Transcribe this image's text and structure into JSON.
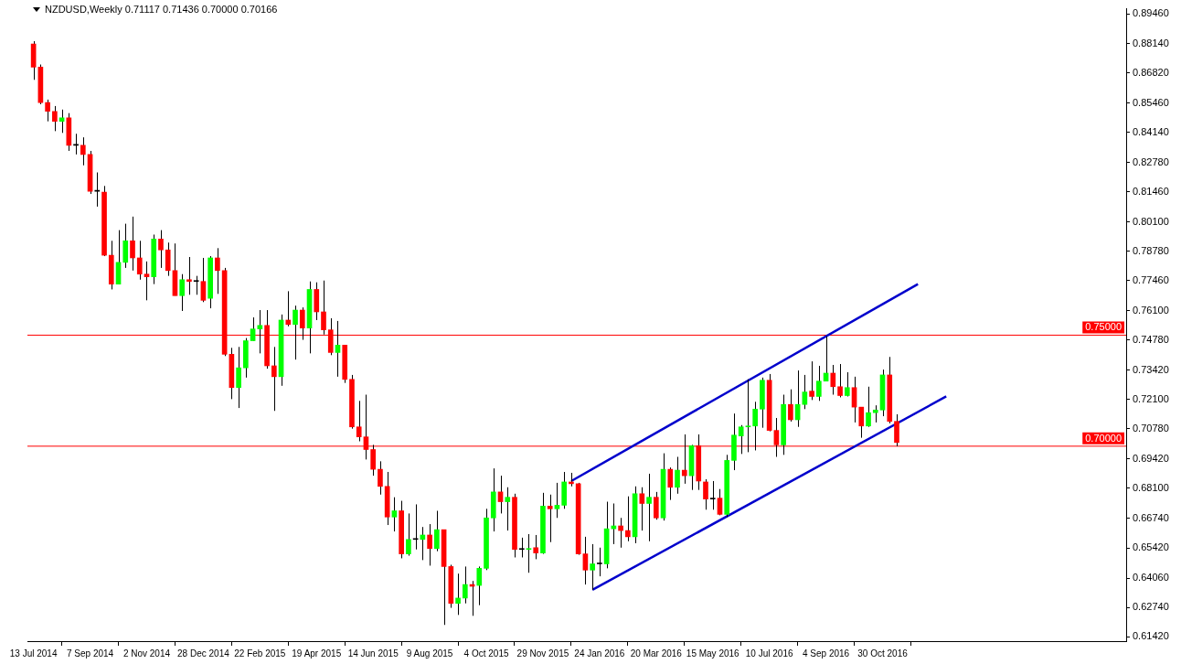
{
  "chart_data": {
    "type": "candlestick",
    "title": "NZDUSD,Weekly  0.71117 0.71436 0.70000 0.70166",
    "x": [
      "2014-07-13",
      "2014-07-20",
      "2014-07-27",
      "2014-08-03",
      "2014-08-10",
      "2014-08-17",
      "2014-08-24",
      "2014-08-31",
      "2014-09-07",
      "2014-09-14",
      "2014-09-21",
      "2014-09-28",
      "2014-10-05",
      "2014-10-12",
      "2014-10-19",
      "2014-10-26",
      "2014-11-02",
      "2014-11-09",
      "2014-11-16",
      "2014-11-23",
      "2014-11-30",
      "2014-12-07",
      "2014-12-14",
      "2014-12-21",
      "2014-12-28",
      "2015-01-04",
      "2015-01-11",
      "2015-01-18",
      "2015-01-25",
      "2015-02-01",
      "2015-02-08",
      "2015-02-15",
      "2015-02-22",
      "2015-03-01",
      "2015-03-08",
      "2015-03-15",
      "2015-03-22",
      "2015-03-29",
      "2015-04-05",
      "2015-04-12",
      "2015-04-19",
      "2015-04-26",
      "2015-05-03",
      "2015-05-10",
      "2015-05-17",
      "2015-05-24",
      "2015-05-31",
      "2015-06-07",
      "2015-06-14",
      "2015-06-21",
      "2015-06-28",
      "2015-07-05",
      "2015-07-12",
      "2015-07-19",
      "2015-07-26",
      "2015-08-02",
      "2015-08-09",
      "2015-08-16",
      "2015-08-23",
      "2015-08-30",
      "2015-09-06",
      "2015-09-13",
      "2015-09-20",
      "2015-09-27",
      "2015-10-04",
      "2015-10-11",
      "2015-10-18",
      "2015-10-25",
      "2015-11-01",
      "2015-11-08",
      "2015-11-15",
      "2015-11-22",
      "2015-11-29",
      "2015-12-06",
      "2015-12-13",
      "2015-12-20",
      "2015-12-27",
      "2016-01-03",
      "2016-01-10",
      "2016-01-17",
      "2016-01-24",
      "2016-01-31",
      "2016-02-07",
      "2016-02-14",
      "2016-02-21",
      "2016-02-28",
      "2016-03-06",
      "2016-03-13",
      "2016-03-20",
      "2016-03-27",
      "2016-04-03",
      "2016-04-10",
      "2016-04-17",
      "2016-04-24",
      "2016-05-01",
      "2016-05-08",
      "2016-05-15",
      "2016-05-22",
      "2016-05-29",
      "2016-06-05",
      "2016-06-12",
      "2016-06-19",
      "2016-06-26",
      "2016-07-03",
      "2016-07-10",
      "2016-07-17",
      "2016-07-24",
      "2016-07-31",
      "2016-08-07",
      "2016-08-14",
      "2016-08-21",
      "2016-08-28",
      "2016-09-04",
      "2016-09-11",
      "2016-09-18",
      "2016-09-25",
      "2016-10-02",
      "2016-10-09",
      "2016-10-16",
      "2016-10-23",
      "2016-10-30",
      "2016-11-06",
      "2016-11-13"
    ],
    "ohlc": [
      [
        0.8812,
        0.8824,
        0.865,
        0.8707
      ],
      [
        0.8707,
        0.8719,
        0.854,
        0.8548
      ],
      [
        0.8548,
        0.8561,
        0.8463,
        0.8508
      ],
      [
        0.8508,
        0.8532,
        0.8419,
        0.8463
      ],
      [
        0.8463,
        0.8516,
        0.8411,
        0.8479
      ],
      [
        0.8479,
        0.85,
        0.833,
        0.8355
      ],
      [
        0.8355,
        0.8407,
        0.8314,
        0.8355
      ],
      [
        0.8355,
        0.8391,
        0.8265,
        0.8314
      ],
      [
        0.8314,
        0.833,
        0.8136,
        0.8148
      ],
      [
        0.8148,
        0.8233,
        0.8079,
        0.8148
      ],
      [
        0.8144,
        0.8172,
        0.7856,
        0.786
      ],
      [
        0.786,
        0.7925,
        0.7706,
        0.773
      ],
      [
        0.773,
        0.7973,
        0.773,
        0.7828
      ],
      [
        0.7828,
        0.8002,
        0.7803,
        0.7925
      ],
      [
        0.7925,
        0.8034,
        0.7791,
        0.7848
      ],
      [
        0.7848,
        0.7925,
        0.775,
        0.7775
      ],
      [
        0.7775,
        0.7832,
        0.7657,
        0.7763
      ],
      [
        0.7763,
        0.7953,
        0.773,
        0.7933
      ],
      [
        0.7933,
        0.7973,
        0.7803,
        0.7884
      ],
      [
        0.7884,
        0.7917,
        0.7767,
        0.7791
      ],
      [
        0.7791,
        0.7913,
        0.7678,
        0.7678
      ],
      [
        0.7678,
        0.7775,
        0.7609,
        0.775
      ],
      [
        0.775,
        0.7852,
        0.7682,
        0.7742
      ],
      [
        0.7742,
        0.7767,
        0.7682,
        0.7742
      ],
      [
        0.7742,
        0.7848,
        0.7649,
        0.7657
      ],
      [
        0.7666,
        0.7856,
        0.7621,
        0.7848
      ],
      [
        0.7848,
        0.7892,
        0.7686,
        0.7791
      ],
      [
        0.7791,
        0.7803,
        0.7406,
        0.7414
      ],
      [
        0.7414,
        0.7443,
        0.7212,
        0.7264
      ],
      [
        0.7264,
        0.7447,
        0.7172,
        0.7353
      ],
      [
        0.7353,
        0.7487,
        0.7309,
        0.7475
      ],
      [
        0.7475,
        0.758,
        0.7475,
        0.7528
      ],
      [
        0.7528,
        0.7613,
        0.7418,
        0.7544
      ],
      [
        0.7544,
        0.7613,
        0.7349,
        0.7362
      ],
      [
        0.7362,
        0.7447,
        0.7159,
        0.7313
      ],
      [
        0.7313,
        0.7593,
        0.7272,
        0.7568
      ],
      [
        0.7568,
        0.7698,
        0.754,
        0.7548
      ],
      [
        0.7548,
        0.7633,
        0.739,
        0.7613
      ],
      [
        0.7613,
        0.7625,
        0.7479,
        0.7532
      ],
      [
        0.7532,
        0.7742,
        0.7418,
        0.7706
      ],
      [
        0.7706,
        0.7738,
        0.7568,
        0.7605
      ],
      [
        0.7605,
        0.7746,
        0.7503,
        0.7524
      ],
      [
        0.7524,
        0.7576,
        0.741,
        0.7422
      ],
      [
        0.7422,
        0.7564,
        0.7313,
        0.7455
      ],
      [
        0.7455,
        0.7455,
        0.7285,
        0.7301
      ],
      [
        0.7301,
        0.7321,
        0.7079,
        0.7087
      ],
      [
        0.7087,
        0.7204,
        0.7022,
        0.7042
      ],
      [
        0.7042,
        0.7232,
        0.694,
        0.6985
      ],
      [
        0.6985,
        0.7006,
        0.6867,
        0.6896
      ],
      [
        0.6896,
        0.6932,
        0.6782,
        0.6819
      ],
      [
        0.6819,
        0.6884,
        0.6645,
        0.6681
      ],
      [
        0.6681,
        0.677,
        0.6616,
        0.6709
      ],
      [
        0.6709,
        0.6754,
        0.6495,
        0.6515
      ],
      [
        0.6515,
        0.6697,
        0.6507,
        0.658
      ],
      [
        0.658,
        0.6738,
        0.6535,
        0.658
      ],
      [
        0.658,
        0.6636,
        0.6487,
        0.66
      ],
      [
        0.66,
        0.6649,
        0.6462,
        0.6539
      ],
      [
        0.6539,
        0.6709,
        0.6527,
        0.6624
      ],
      [
        0.6624,
        0.6624,
        0.6195,
        0.6458
      ],
      [
        0.6458,
        0.6466,
        0.6272,
        0.6292
      ],
      [
        0.6292,
        0.6426,
        0.624,
        0.6316
      ],
      [
        0.6316,
        0.6458,
        0.6292,
        0.6377
      ],
      [
        0.6377,
        0.6393,
        0.6236,
        0.6369
      ],
      [
        0.6373,
        0.6458,
        0.6284,
        0.645
      ],
      [
        0.645,
        0.6718,
        0.6442,
        0.6677
      ],
      [
        0.6677,
        0.69,
        0.6616,
        0.6794
      ],
      [
        0.6794,
        0.6867,
        0.6697,
        0.675
      ],
      [
        0.675,
        0.6815,
        0.662,
        0.677
      ],
      [
        0.677,
        0.6786,
        0.6499,
        0.6535
      ],
      [
        0.6535,
        0.6588,
        0.6499,
        0.6535
      ],
      [
        0.6535,
        0.6604,
        0.643,
        0.6539
      ],
      [
        0.6543,
        0.66,
        0.6491,
        0.6519
      ],
      [
        0.6519,
        0.679,
        0.6515,
        0.673
      ],
      [
        0.673,
        0.6782,
        0.6568,
        0.6718
      ],
      [
        0.6718,
        0.6835,
        0.6677,
        0.6734
      ],
      [
        0.6734,
        0.6884,
        0.6718,
        0.6839
      ],
      [
        0.6839,
        0.688,
        0.6819,
        0.6831
      ],
      [
        0.6831,
        0.6835,
        0.6511,
        0.6515
      ],
      [
        0.6515,
        0.6592,
        0.6377,
        0.6442
      ],
      [
        0.6442,
        0.6559,
        0.6353,
        0.647
      ],
      [
        0.647,
        0.6543,
        0.6414,
        0.647
      ],
      [
        0.647,
        0.675,
        0.645,
        0.6628
      ],
      [
        0.6628,
        0.6742,
        0.6559,
        0.6641
      ],
      [
        0.6641,
        0.6677,
        0.6543,
        0.662
      ],
      [
        0.662,
        0.6774,
        0.6572,
        0.6592
      ],
      [
        0.6592,
        0.6819,
        0.6563,
        0.6786
      ],
      [
        0.6786,
        0.6815,
        0.662,
        0.6742
      ],
      [
        0.6742,
        0.6876,
        0.6572,
        0.677
      ],
      [
        0.677,
        0.6794,
        0.6669,
        0.6677
      ],
      [
        0.6677,
        0.6968,
        0.6665,
        0.6896
      ],
      [
        0.6896,
        0.6904,
        0.6758,
        0.6815
      ],
      [
        0.6815,
        0.6952,
        0.6786,
        0.6892
      ],
      [
        0.6892,
        0.7053,
        0.6831,
        0.6867
      ],
      [
        0.6867,
        0.7006,
        0.6803,
        0.7002
      ],
      [
        0.7002,
        0.7053,
        0.6803,
        0.6843
      ],
      [
        0.6839,
        0.6851,
        0.6714,
        0.6762
      ],
      [
        0.6762,
        0.6843,
        0.6714,
        0.6762
      ],
      [
        0.6766,
        0.6807,
        0.6689,
        0.6693
      ],
      [
        0.6693,
        0.6961,
        0.6681,
        0.6936
      ],
      [
        0.6936,
        0.7147,
        0.6892,
        0.705
      ],
      [
        0.7046,
        0.7095,
        0.6965,
        0.7087
      ],
      [
        0.7087,
        0.7301,
        0.6973,
        0.7091
      ],
      [
        0.7091,
        0.72,
        0.6981,
        0.7167
      ],
      [
        0.7167,
        0.7309,
        0.7083,
        0.7297
      ],
      [
        0.7297,
        0.7325,
        0.7067,
        0.7071
      ],
      [
        0.7071,
        0.7127,
        0.6952,
        0.7006
      ],
      [
        0.7006,
        0.7232,
        0.6961,
        0.7188
      ],
      [
        0.7188,
        0.7256,
        0.7111,
        0.7119
      ],
      [
        0.7119,
        0.7341,
        0.7087,
        0.7188
      ],
      [
        0.7188,
        0.7321,
        0.7167,
        0.7244
      ],
      [
        0.7248,
        0.7382,
        0.7208,
        0.7224
      ],
      [
        0.7224,
        0.7362,
        0.7204,
        0.7293
      ],
      [
        0.7293,
        0.7495,
        0.7293,
        0.7329
      ],
      [
        0.7329,
        0.7366,
        0.7232,
        0.7268
      ],
      [
        0.7268,
        0.737,
        0.722,
        0.7228
      ],
      [
        0.7228,
        0.7333,
        0.7224,
        0.7264
      ],
      [
        0.7264,
        0.7313,
        0.7107,
        0.7176
      ],
      [
        0.7176,
        0.7176,
        0.7038,
        0.7091
      ],
      [
        0.7091,
        0.7268,
        0.7087,
        0.7151
      ],
      [
        0.7151,
        0.7184,
        0.7107,
        0.7163
      ],
      [
        0.7163,
        0.7345,
        0.7135,
        0.7321
      ],
      [
        0.7321,
        0.7402,
        0.7103,
        0.7112
      ],
      [
        0.71117,
        0.71436,
        0.7,
        0.70166
      ]
    ],
    "colors": [
      "#ff0000",
      "#ff0000",
      "#ff0000",
      "#ff0000",
      "#00ff00",
      "#ff0000",
      "#000000",
      "#ff0000",
      "#ff0000",
      "#000000",
      "#ff0000",
      "#ff0000",
      "#00ff00",
      "#00ff00",
      "#ff0000",
      "#ff0000",
      "#ff0000",
      "#00ff00",
      "#ff0000",
      "#ff0000",
      "#ff0000",
      "#00ff00",
      "#ff0000",
      "#000000",
      "#ff0000",
      "#00ff00",
      "#ff0000",
      "#ff0000",
      "#ff0000",
      "#00ff00",
      "#00ff00",
      "#00ff00",
      "#00ff00",
      "#ff0000",
      "#ff0000",
      "#00ff00",
      "#ff0000",
      "#00ff00",
      "#ff0000",
      "#00ff00",
      "#ff0000",
      "#ff0000",
      "#ff0000",
      "#00ff00",
      "#ff0000",
      "#ff0000",
      "#ff0000",
      "#ff0000",
      "#ff0000",
      "#ff0000",
      "#ff0000",
      "#00ff00",
      "#ff0000",
      "#00ff00",
      "#000000",
      "#00ff00",
      "#ff0000",
      "#00ff00",
      "#ff0000",
      "#ff0000",
      "#00ff00",
      "#00ff00",
      "#ff0000",
      "#00ff00",
      "#00ff00",
      "#00ff00",
      "#ff0000",
      "#00ff00",
      "#ff0000",
      "#000000",
      "#00ff00",
      "#ff0000",
      "#00ff00",
      "#ff0000",
      "#00ff00",
      "#00ff00",
      "#ff0000",
      "#ff0000",
      "#ff0000",
      "#00ff00",
      "#000000",
      "#00ff00",
      "#00ff00",
      "#ff0000",
      "#ff0000",
      "#00ff00",
      "#ff0000",
      "#00ff00",
      "#ff0000",
      "#00ff00",
      "#ff0000",
      "#00ff00",
      "#ff0000",
      "#00ff00",
      "#ff0000",
      "#ff0000",
      "#000000",
      "#ff0000",
      "#00ff00",
      "#00ff00",
      "#00ff00",
      "#00ff00",
      "#00ff00",
      "#00ff00",
      "#ff0000",
      "#ff0000",
      "#00ff00",
      "#ff0000",
      "#00ff00",
      "#00ff00",
      "#ff0000",
      "#00ff00",
      "#00ff00",
      "#ff0000",
      "#ff0000",
      "#00ff00",
      "#ff0000",
      "#ff0000",
      "#00ff00",
      "#00ff00",
      "#00ff00",
      "#ff0000",
      "#ff0000"
    ],
    "series": [
      {
        "type": "line",
        "color": "#0000cc",
        "x": [
          "2015-12-27",
          "2016-12-04"
        ],
        "values": [
          0.6843,
          0.773
        ]
      },
      {
        "type": "line",
        "color": "#0000cc",
        "x": [
          "2016-01-17",
          "2017-01-01"
        ],
        "values": [
          0.6353,
          0.7224
        ]
      }
    ],
    "xlim": [
      "2014-07-07",
      "2017-06-28"
    ],
    "xticks": [
      {
        "value": "2014-07-13",
        "label": "13 Jul 2014"
      },
      {
        "value": "2014-09-07",
        "label": "7 Sep 2014"
      },
      {
        "value": "2014-11-02",
        "label": "2 Nov 2014"
      },
      {
        "value": "2014-12-28",
        "label": "28 Dec 2014"
      },
      {
        "value": "2015-02-22",
        "label": "22 Feb 2015"
      },
      {
        "value": "2015-04-19",
        "label": "19 Apr 2015"
      },
      {
        "value": "2015-06-14",
        "label": "14 Jun 2015"
      },
      {
        "value": "2015-08-09",
        "label": "9 Aug 2015"
      },
      {
        "value": "2015-10-04",
        "label": "4 Oct 2015"
      },
      {
        "value": "2015-11-29",
        "label": "29 Nov 2015"
      },
      {
        "value": "2016-01-24",
        "label": "24 Jan 2016"
      },
      {
        "value": "2016-03-20",
        "label": "20 Mar 2016"
      },
      {
        "value": "2016-05-15",
        "label": "15 May 2016"
      },
      {
        "value": "2016-07-10",
        "label": "10 Jul 2016"
      },
      {
        "value": "2016-09-04",
        "label": "4 Sep 2016"
      },
      {
        "value": "2016-10-30",
        "label": "30 Oct 2016"
      }
    ],
    "ylim": [
      0.6122,
      0.897
    ],
    "yticks": [
      {
        "value": 0.8946,
        "label": "0.89460"
      },
      {
        "value": 0.8814,
        "label": "0.88140"
      },
      {
        "value": 0.8682,
        "label": "0.86820"
      },
      {
        "value": 0.8546,
        "label": "0.85460"
      },
      {
        "value": 0.8414,
        "label": "0.84140"
      },
      {
        "value": 0.8278,
        "label": "0.82780"
      },
      {
        "value": 0.8146,
        "label": "0.81460"
      },
      {
        "value": 0.801,
        "label": "0.80100"
      },
      {
        "value": 0.7878,
        "label": "0.78780"
      },
      {
        "value": 0.7746,
        "label": "0.77460"
      },
      {
        "value": 0.761,
        "label": "0.76100"
      },
      {
        "value": 0.7478,
        "label": "0.74780"
      },
      {
        "value": 0.7342,
        "label": "0.73420"
      },
      {
        "value": 0.721,
        "label": "0.72100"
      },
      {
        "value": 0.7078,
        "label": "0.70780"
      },
      {
        "value": 0.6942,
        "label": "0.69420"
      },
      {
        "value": 0.681,
        "label": "0.68100"
      },
      {
        "value": 0.6674,
        "label": "0.66740"
      },
      {
        "value": 0.6542,
        "label": "0.65420"
      },
      {
        "value": 0.6406,
        "label": "0.64060"
      },
      {
        "value": 0.6274,
        "label": "0.62740"
      },
      {
        "value": 0.6142,
        "label": "0.61420"
      }
    ],
    "ref_lines": [
      {
        "axis": "y",
        "value": 0.75,
        "label": "0.75000",
        "color": "#ff0000"
      },
      {
        "axis": "y",
        "value": 0.7,
        "label": "0.70000",
        "color": "#ff0000"
      }
    ]
  }
}
